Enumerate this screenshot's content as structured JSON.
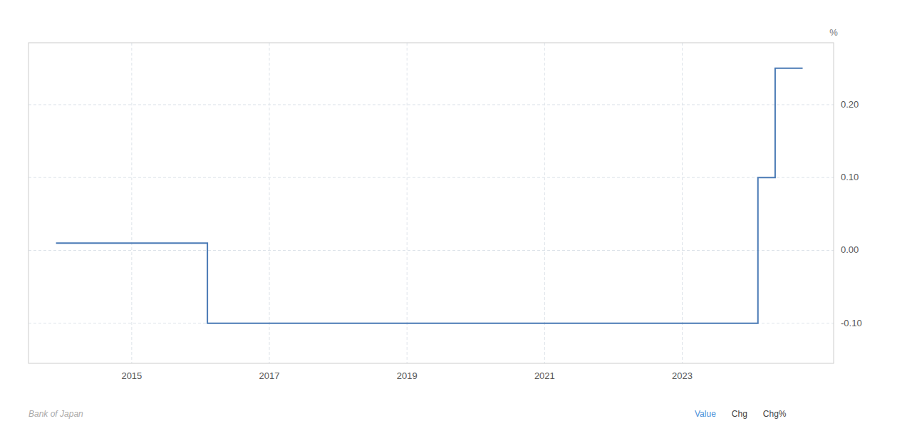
{
  "chart_data": {
    "type": "line",
    "x": [
      2013.9,
      2016.1,
      2016.1,
      2024.1,
      2024.1,
      2024.35,
      2024.35,
      2024.75
    ],
    "values": [
      0.01,
      0.01,
      -0.1,
      -0.1,
      0.1,
      0.1,
      0.25,
      0.25
    ],
    "color": "#4a7ab5",
    "xlim": [
      2013.5,
      2025.2
    ],
    "xticks": [
      2015,
      2017,
      2019,
      2021,
      2023
    ],
    "ylim": [
      -0.155,
      0.285
    ],
    "yticks": [
      {
        "value": -0.1,
        "label": "-0.10"
      },
      {
        "value": 0.0,
        "label": "0.00"
      },
      {
        "value": 0.1,
        "label": "0.10"
      },
      {
        "value": 0.2,
        "label": "0.20"
      }
    ],
    "y_label": "%",
    "grid": true,
    "annotations": [
      {
        "text": "Bank of Japan",
        "color": "#aaaaaa"
      },
      {
        "text": "Value",
        "color": "#4a90d9"
      },
      {
        "text": "Chg",
        "color": "#444444"
      },
      {
        "text": "Chg%",
        "color": "#444444"
      }
    ]
  }
}
